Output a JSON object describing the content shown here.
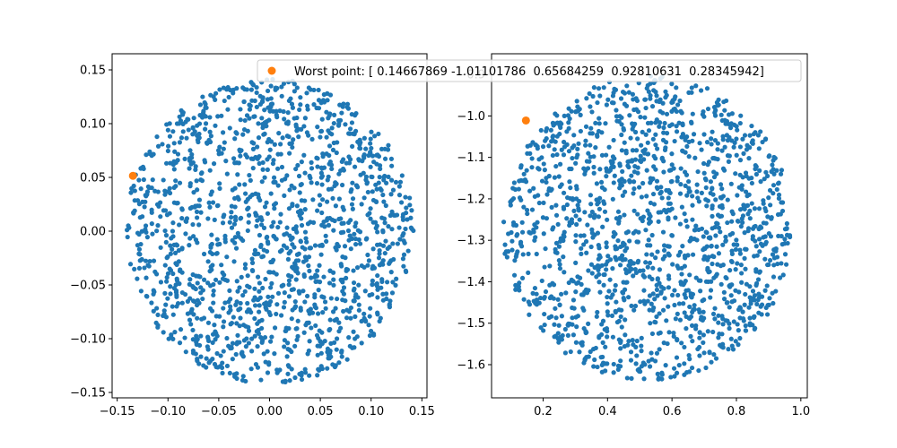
{
  "chart_data": [
    {
      "type": "scatter",
      "xlim": [
        -0.155,
        0.155
      ],
      "ylim": [
        -0.155,
        0.165
      ],
      "xticks": [
        -0.15,
        -0.1,
        -0.05,
        0.0,
        0.05,
        0.1,
        0.15
      ],
      "yticks": [
        -0.15,
        -0.1,
        -0.05,
        0.0,
        0.05,
        0.1,
        0.15
      ],
      "xtick_labels": [
        "−0.15",
        "−0.10",
        "−0.05",
        "0.00",
        "0.05",
        "0.10",
        "0.15"
      ],
      "ytick_labels": [
        "−0.15",
        "−0.10",
        "−0.05",
        "0.00",
        "0.05",
        "0.10",
        "0.15"
      ],
      "cloud": {
        "shape": "disk",
        "center": [
          0.0,
          0.0
        ],
        "radius": [
          0.142,
          0.142
        ],
        "count": 1500,
        "color": "#1f77b4"
      },
      "highlight": {
        "x": -0.1345,
        "y": 0.0515,
        "color": "#ff7f0e"
      }
    },
    {
      "type": "scatter",
      "xlim": [
        0.04,
        1.02
      ],
      "ylim": [
        -1.68,
        -0.85
      ],
      "xticks": [
        0.2,
        0.4,
        0.6,
        0.8,
        1.0
      ],
      "yticks": [
        -1.6,
        -1.5,
        -1.4,
        -1.3,
        -1.2,
        -1.1,
        -1.0,
        -0.9
      ],
      "xtick_labels": [
        "0.2",
        "0.4",
        "0.6",
        "0.8",
        "1.0"
      ],
      "ytick_labels": [
        "−1.6",
        "−1.5",
        "−1.4",
        "−1.3",
        "−1.2",
        "−1.1",
        "−1.0",
        "−0.9"
      ],
      "cloud": {
        "shape": "disk",
        "center": [
          0.525,
          -1.27
        ],
        "radius": [
          0.45,
          0.37
        ],
        "count": 1500,
        "color": "#1f77b4"
      },
      "highlight": {
        "x": 0.1467,
        "y": -1.011,
        "color": "#ff7f0e"
      }
    }
  ],
  "legend": {
    "label": "Worst point: [ 0.14667869 -1.01101786  0.65684259  0.92810631  0.28345942]",
    "marker_color": "#ff7f0e",
    "placement": "top"
  }
}
